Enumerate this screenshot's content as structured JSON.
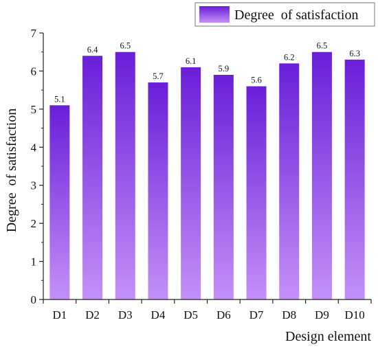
{
  "chart_data": {
    "type": "bar",
    "title": "",
    "xlabel": "Design element",
    "ylabel": "Degree  of satisfaction",
    "categories": [
      "D1",
      "D2",
      "D3",
      "D4",
      "D5",
      "D6",
      "D7",
      "D8",
      "D9",
      "D10"
    ],
    "series": [
      {
        "name": "Degree  of satisfaction",
        "values": [
          5.1,
          6.4,
          6.5,
          5.7,
          6.1,
          5.9,
          5.6,
          6.2,
          6.5,
          6.3
        ],
        "data_labels": [
          "5.1",
          "6.4",
          "6.5",
          "5.7",
          "6.1",
          "5.9",
          "5.6",
          "6.2",
          "6.5",
          "6.3"
        ]
      }
    ],
    "ylim": [
      0,
      7
    ],
    "yticks": [
      "0",
      "1",
      "2",
      "3",
      "4",
      "5",
      "6",
      "7"
    ],
    "grid": false,
    "legend": "top-right",
    "colors": {
      "bar_top": "#6a1ed8",
      "bar_bottom": "#c490f7",
      "axis": "#222222"
    }
  }
}
